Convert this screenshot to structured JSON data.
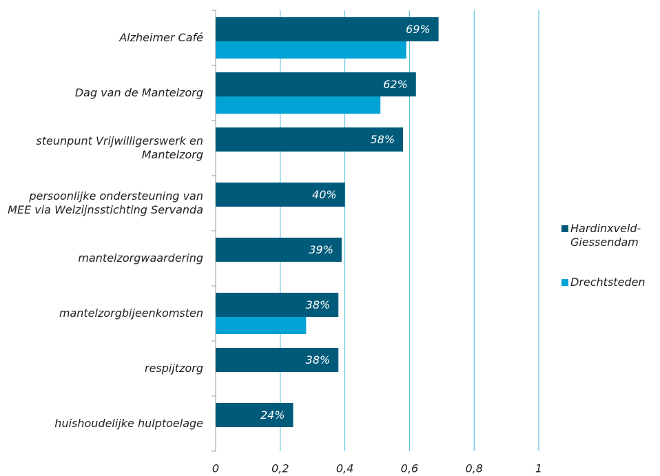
{
  "chart_data": {
    "type": "bar",
    "orientation": "horizontal",
    "categories": [
      "Alzheimer Café",
      "Dag van de Mantelzorg",
      "steunpunt Vrijwilligerswerk en Mantelzorg",
      "persoonlijke ondersteuning van MEE via Welzijnsstichting Servanda",
      "mantelzorgwaardering",
      "mantelzorgbijeenkomsten",
      "respijtzorg",
      "huishoudelijke hulptoelage"
    ],
    "series": [
      {
        "name": "Hardinxveld-Giessendam",
        "color": "#005b7a",
        "values": [
          0.69,
          0.62,
          0.58,
          0.4,
          0.39,
          0.38,
          0.38,
          0.24
        ],
        "value_labels": [
          "69%",
          "62%",
          "58%",
          "40%",
          "39%",
          "38%",
          "38%",
          "24%"
        ]
      },
      {
        "name": "Drechtsteden",
        "color": "#00a3d4",
        "values": [
          0.59,
          0.51,
          null,
          null,
          null,
          0.28,
          null,
          null
        ]
      }
    ],
    "xlim": [
      0,
      1
    ],
    "xticks": [
      0,
      {
        "value": 0.2,
        "label": "0,2"
      },
      {
        "value": 0.4,
        "label": "0,4"
      },
      {
        "value": 0.6,
        "label": "0,6"
      },
      {
        "value": 0.8,
        "label": "0,8"
      },
      1
    ],
    "grid": true,
    "legend": "right"
  }
}
